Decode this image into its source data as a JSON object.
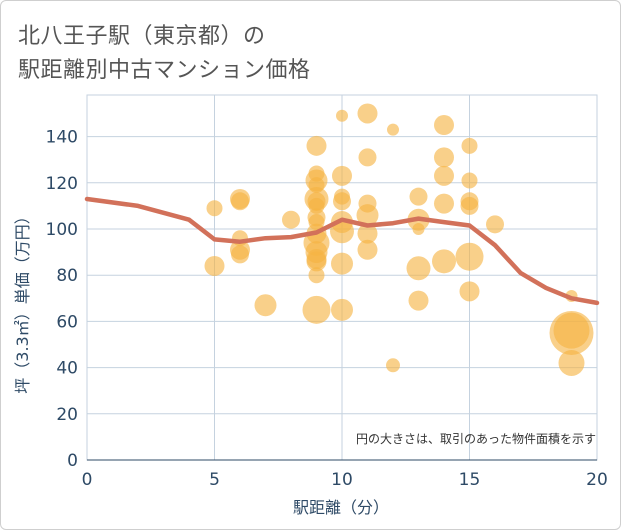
{
  "title_line1": "北八王子駅（東京都）の",
  "title_line2": "駅距離別中古マンション価格",
  "chart_data": {
    "type": "scatter",
    "xlabel": "駅距離（分）",
    "ylabel": "坪（3.3㎡）単価（万円）",
    "xlim": [
      0,
      20
    ],
    "ylim": [
      0,
      158
    ],
    "xticks": [
      0,
      5,
      10,
      15,
      20
    ],
    "yticks": [
      0,
      20,
      40,
      60,
      80,
      100,
      120,
      140
    ],
    "grid": true,
    "note": "円の大きさは、取引のあった物件面積を示す",
    "colors": {
      "bubble": "#f5b342",
      "line": "#d2715a",
      "grid": "#c5d2df",
      "text": "#2e4a66"
    },
    "series": [
      {
        "type": "bubble",
        "points": [
          {
            "x": 5,
            "y": 109,
            "s": 8
          },
          {
            "x": 5,
            "y": 84,
            "s": 10
          },
          {
            "x": 6,
            "y": 113,
            "s": 10
          },
          {
            "x": 6,
            "y": 112,
            "s": 9
          },
          {
            "x": 6,
            "y": 96,
            "s": 8
          },
          {
            "x": 6,
            "y": 91,
            "s": 10
          },
          {
            "x": 6,
            "y": 89,
            "s": 9
          },
          {
            "x": 7,
            "y": 67,
            "s": 11
          },
          {
            "x": 8,
            "y": 104,
            "s": 9
          },
          {
            "x": 9,
            "y": 136,
            "s": 10
          },
          {
            "x": 9,
            "y": 124,
            "s": 8
          },
          {
            "x": 9,
            "y": 121,
            "s": 11
          },
          {
            "x": 9,
            "y": 119,
            "s": 8
          },
          {
            "x": 9,
            "y": 113,
            "s": 12
          },
          {
            "x": 9,
            "y": 112,
            "s": 9
          },
          {
            "x": 9,
            "y": 110,
            "s": 8
          },
          {
            "x": 9,
            "y": 105,
            "s": 9
          },
          {
            "x": 9,
            "y": 103,
            "s": 8
          },
          {
            "x": 9,
            "y": 98,
            "s": 10
          },
          {
            "x": 9,
            "y": 94,
            "s": 13
          },
          {
            "x": 9,
            "y": 90,
            "s": 11
          },
          {
            "x": 9,
            "y": 87,
            "s": 10
          },
          {
            "x": 9,
            "y": 86,
            "s": 10
          },
          {
            "x": 9,
            "y": 80,
            "s": 8
          },
          {
            "x": 9,
            "y": 65,
            "s": 14
          },
          {
            "x": 10,
            "y": 149,
            "s": 6
          },
          {
            "x": 10,
            "y": 123,
            "s": 10
          },
          {
            "x": 10,
            "y": 114,
            "s": 8
          },
          {
            "x": 10,
            "y": 112,
            "s": 9
          },
          {
            "x": 10,
            "y": 103,
            "s": 11
          },
          {
            "x": 10,
            "y": 99,
            "s": 12
          },
          {
            "x": 10,
            "y": 85,
            "s": 11
          },
          {
            "x": 10,
            "y": 65,
            "s": 11
          },
          {
            "x": 11,
            "y": 150,
            "s": 10
          },
          {
            "x": 11,
            "y": 131,
            "s": 9
          },
          {
            "x": 11,
            "y": 111,
            "s": 9
          },
          {
            "x": 11,
            "y": 106,
            "s": 11
          },
          {
            "x": 11,
            "y": 98,
            "s": 10
          },
          {
            "x": 11,
            "y": 91,
            "s": 10
          },
          {
            "x": 12,
            "y": 143,
            "s": 6
          },
          {
            "x": 12,
            "y": 41,
            "s": 7
          },
          {
            "x": 13,
            "y": 114,
            "s": 9
          },
          {
            "x": 13,
            "y": 104,
            "s": 11
          },
          {
            "x": 13,
            "y": 100,
            "s": 6
          },
          {
            "x": 13,
            "y": 83,
            "s": 12
          },
          {
            "x": 13,
            "y": 69,
            "s": 10
          },
          {
            "x": 14,
            "y": 145,
            "s": 10
          },
          {
            "x": 14,
            "y": 131,
            "s": 10
          },
          {
            "x": 14,
            "y": 123,
            "s": 10
          },
          {
            "x": 14,
            "y": 111,
            "s": 10
          },
          {
            "x": 14,
            "y": 86,
            "s": 12
          },
          {
            "x": 15,
            "y": 136,
            "s": 8
          },
          {
            "x": 15,
            "y": 121,
            "s": 8
          },
          {
            "x": 15,
            "y": 112,
            "s": 9
          },
          {
            "x": 15,
            "y": 110,
            "s": 9
          },
          {
            "x": 15,
            "y": 88,
            "s": 14
          },
          {
            "x": 15,
            "y": 73,
            "s": 10
          },
          {
            "x": 16,
            "y": 102,
            "s": 9
          },
          {
            "x": 19,
            "y": 71,
            "s": 6
          },
          {
            "x": 19,
            "y": 56,
            "s": 18
          },
          {
            "x": 19,
            "y": 55,
            "s": 22
          },
          {
            "x": 19,
            "y": 42,
            "s": 13
          }
        ]
      },
      {
        "type": "line",
        "points": [
          {
            "x": 0,
            "y": 113
          },
          {
            "x": 2,
            "y": 110
          },
          {
            "x": 4,
            "y": 104
          },
          {
            "x": 5,
            "y": 95.5
          },
          {
            "x": 6,
            "y": 94.5
          },
          {
            "x": 7,
            "y": 96
          },
          {
            "x": 8,
            "y": 96.5
          },
          {
            "x": 9,
            "y": 98.5
          },
          {
            "x": 10,
            "y": 104
          },
          {
            "x": 11,
            "y": 101.5
          },
          {
            "x": 12,
            "y": 102.5
          },
          {
            "x": 13,
            "y": 104.5
          },
          {
            "x": 14,
            "y": 103
          },
          {
            "x": 15,
            "y": 101.5
          },
          {
            "x": 16,
            "y": 93
          },
          {
            "x": 17,
            "y": 81
          },
          {
            "x": 18,
            "y": 74.5
          },
          {
            "x": 19,
            "y": 70
          },
          {
            "x": 20,
            "y": 68
          }
        ]
      }
    ]
  }
}
